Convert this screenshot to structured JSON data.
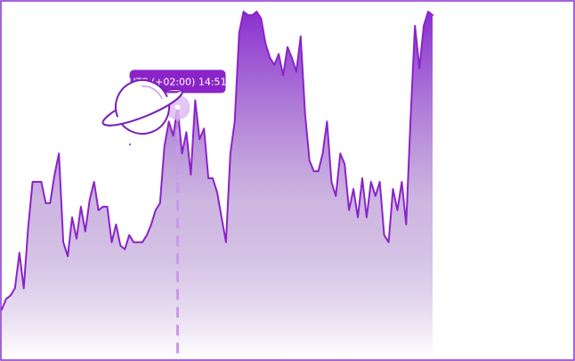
{
  "chart_data": {
    "type": "area",
    "x_range": [
      0,
      130
    ],
    "ylim": [
      0,
      100
    ],
    "values": [
      14,
      17,
      18,
      20,
      30,
      20,
      37,
      50,
      50,
      50,
      44,
      44,
      52,
      58,
      33,
      29,
      40,
      34,
      43,
      36,
      45,
      50,
      42,
      43,
      43,
      33,
      38,
      32,
      31,
      35,
      33,
      33,
      33,
      35,
      38,
      42,
      44,
      60,
      67,
      63,
      71,
      58,
      64,
      52,
      73,
      62,
      65,
      51,
      51,
      47,
      40,
      33,
      58,
      67,
      92,
      98,
      97,
      97,
      98,
      96,
      89,
      85,
      83,
      86,
      80,
      88,
      85,
      81,
      91,
      69,
      56,
      53,
      53,
      58,
      67,
      50,
      46,
      58,
      55,
      42,
      48,
      40,
      51,
      40,
      50,
      46,
      50,
      35,
      33,
      48,
      42,
      50,
      38,
      68,
      94,
      82,
      94,
      98,
      97
    ],
    "tooltip": "UTC (+02:00) 14:51",
    "highlight_index": 40,
    "colors": {
      "line": "#8a24c8",
      "fill_top": "#8a2ed0",
      "fill_bottom": "#ffffff"
    },
    "grid": false,
    "axes_visible": false
  },
  "decoration": {
    "icon": "planet-icon"
  }
}
